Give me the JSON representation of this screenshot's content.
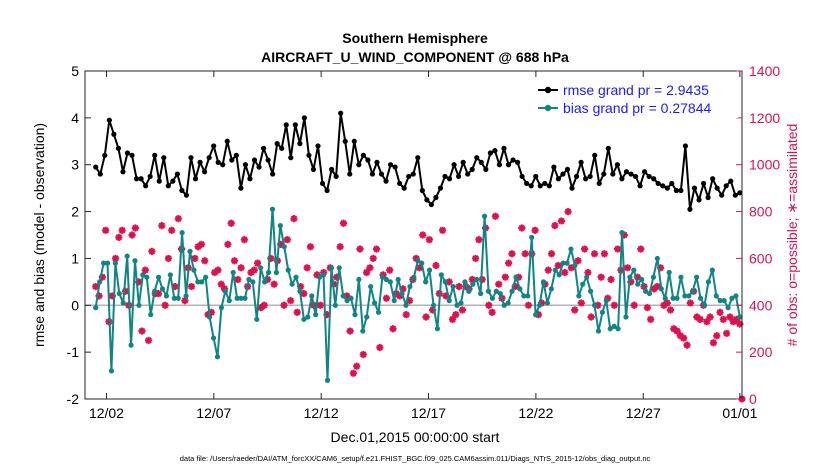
{
  "chart_data": {
    "type": "line",
    "title": "Southern Hemisphere",
    "subtitle": "AIRCRAFT_U_WIND_COMPONENT @ 688 hPa",
    "xlabel": "Dec.01,2015 00:00:00 start",
    "ylabel": "rmse and bias (model - observation)",
    "ylabel_right": "# of obs: o=possible; ∗=assimilated",
    "footnote": "data file: /Users/raeder/DAI/ATM_forcXX/CAM6_setup/f.e21.FHIST_BGC.f09_025.CAM6assim.011/Diags_NTrS_2015-12/obs_diag_output.nc",
    "xlim": [
      0.5,
      31.1
    ],
    "ylim": [
      -2,
      5
    ],
    "ylim_right": [
      0,
      1400
    ],
    "x_ticks": [
      1.5,
      6.5,
      11.5,
      16.5,
      21.5,
      26.5,
      31
    ],
    "x_tick_labels": [
      "12/02",
      "12/07",
      "12/12",
      "12/17",
      "12/22",
      "12/27",
      "01/01"
    ],
    "y_ticks": [
      "-2",
      "-1",
      "0",
      "1",
      "2",
      "3",
      "4",
      "5"
    ],
    "y_ticks_right": [
      "0",
      "200",
      "400",
      "600",
      "800",
      "1000",
      "1200",
      "1400"
    ],
    "legend": {
      "placement": "top-right",
      "rmse_label": "rmse grand pr = 2.9435",
      "bias_label": "bias grand pr = 0.27844"
    },
    "colors": {
      "rmse": "#000000",
      "bias": "#0f8585",
      "obs": "#e0104f",
      "right_axis": "#d6135a",
      "legend_text": "#1a1aff",
      "zero_line": "#b3b3b3"
    },
    "series": [
      {
        "name": "rmse",
        "values": [
          2.95,
          2.8,
          3.2,
          3.95,
          3.65,
          3.35,
          2.85,
          3.25,
          3.2,
          2.7,
          2.7,
          2.55,
          2.75,
          3.2,
          2.65,
          3.15,
          2.55,
          2.65,
          2.8,
          2.45,
          2.35,
          3.15,
          2.7,
          3.05,
          2.85,
          3.15,
          3.4,
          3.05,
          3.0,
          3.5,
          3.1,
          3.2,
          2.5,
          3.0,
          2.7,
          3.1,
          2.95,
          3.35,
          3.1,
          2.8,
          3.45,
          3.35,
          3.85,
          3.15,
          3.85,
          3.45,
          4.0,
          3.2,
          2.9,
          3.4,
          2.6,
          2.45,
          2.9,
          2.75,
          4.1,
          3.5,
          2.8,
          3.5,
          3.0,
          3.2,
          3.1,
          2.8,
          3.05,
          2.8,
          2.65,
          3.0,
          2.95,
          2.6,
          2.5,
          2.75,
          2.8,
          3.15,
          2.45,
          2.25,
          2.15,
          2.3,
          2.5,
          2.75,
          2.7,
          3.0,
          2.75,
          3.05,
          2.8,
          2.9,
          3.15,
          3.05,
          2.9,
          3.25,
          3.3,
          3.0,
          3.35,
          3.0,
          3.1,
          3.05,
          2.75,
          2.6,
          2.55,
          2.75,
          2.55,
          2.6,
          2.55,
          2.95,
          2.7,
          2.8,
          2.9,
          2.5,
          2.75,
          3.05,
          2.7,
          2.75,
          3.2,
          2.6,
          2.8,
          3.35,
          2.8,
          3.0,
          2.7,
          2.85,
          2.8,
          2.75,
          2.55,
          2.85,
          2.75,
          2.7,
          2.6,
          2.55,
          2.5,
          2.6,
          2.45,
          2.45,
          3.4,
          2.05,
          2.5,
          2.25,
          2.6,
          2.3,
          2.7,
          2.5,
          2.35,
          2.55,
          2.65,
          2.35,
          2.4
        ]
      },
      {
        "name": "bias",
        "values": [
          -0.05,
          0.5,
          0.9,
          0.9,
          -1.4,
          0.9,
          0.25,
          0.05,
          1.05,
          -0.85,
          0.95,
          0.0,
          0.65,
          0.6,
          -0.2,
          0.3,
          0.6,
          0.35,
          0.2,
          0.65,
          0.15,
          0.15,
          1.55,
          0.2,
          1.15,
          0.75,
          0.5,
          0.5,
          0.6,
          -0.25,
          -0.7,
          -1.1,
          -0.05,
          0.3,
          0.1,
          0.7,
          0.15,
          0.15,
          0.15,
          0.55,
          0.5,
          -0.3,
          0.8,
          0.5,
          0.7,
          2.05,
          0.7,
          1.7,
          1.25,
          0.75,
          0.45,
          0.6,
          0.3,
          -0.3,
          -0.25,
          0.2,
          -0.2,
          0.6,
          0.65,
          -1.6,
          0.8,
          0.0,
          0.8,
          0.2,
          0.1,
          0.15,
          -0.2,
          0.55,
          -0.55,
          -0.25,
          0.4,
          0.05,
          -0.15,
          0.6,
          0.55,
          0.5,
          0.1,
          0.55,
          0.25,
          0.0,
          0.4,
          0.6,
          0.95,
          0.9,
          0.5,
          0.75,
          0.0,
          -0.5,
          0.65,
          0.5,
          0.1,
          0.4,
          0.0,
          0.05,
          0.5,
          0.3,
          0.45,
          0.55,
          0.25,
          1.9,
          0.3,
          0.15,
          0.3,
          0.25,
          0.0,
          0.05,
          0.3,
          0.6,
          0.35,
          0.2,
          0.2,
          1.45,
          -0.2,
          0.0,
          0.5,
          0.05,
          0.35,
          0.75,
          0.65,
          0.9,
          0.9,
          1.2,
          0.85,
          0.2,
          0.45,
          0.6,
          0.3,
          0.0,
          -0.55,
          -0.15,
          0.1,
          -0.5,
          -0.45,
          -0.5,
          1.55,
          -0.25,
          0.6,
          0.75,
          0.45,
          0.55,
          0.3,
          0.25,
          0.6,
          1.0,
          0.35,
          0.15,
          0.7,
          0.15,
          0.15,
          0.6,
          0.2,
          0.2,
          0.3,
          0.6,
          0.15,
          0.0,
          0.5,
          0.75,
          0.2,
          0.1,
          0.1,
          -0.05,
          0.15,
          0.2,
          -0.25
        ]
      },
      {
        "name": "obs_assimilated",
        "values": [
          480,
          440,
          520,
          720,
          330,
          440,
          600,
          690,
          720,
          460,
          400,
          700,
          730,
          500,
          290,
          550,
          250,
          630,
          450,
          450,
          740,
          400,
          600,
          720,
          480,
          770,
          640,
          420,
          560,
          480,
          600,
          650,
          660,
          590,
          360,
          370,
          540,
          550,
          490,
          470,
          660,
          750,
          590,
          510,
          560,
          680,
          480,
          540,
          550,
          580,
          390,
          400,
          510,
          600,
          490,
          590,
          660,
          400,
          680,
          420,
          770,
          370,
          480,
          450,
          560,
          650,
          400,
          530,
          400,
          540,
          360,
          560,
          490,
          520,
          650,
          750,
          440,
          290,
          110,
          140,
          640,
          190,
          540,
          560,
          600,
          640,
          220,
          530,
          430,
          550,
          300,
          450,
          440,
          470,
          360,
          420,
          510,
          600,
          560,
          700,
          350,
          680,
          380,
          570,
          450,
          720,
          440,
          500,
          340,
          360,
          480,
          380,
          480,
          470,
          510,
          600,
          680,
          510,
          730,
          400,
          370,
          780,
          490,
          430,
          520,
          580,
          620,
          480,
          520,
          730,
          620,
          400,
          620,
          720,
          360,
          410,
          490,
          550,
          620,
          740,
          570,
          760,
          540,
          800,
          560,
          380,
          590,
          410,
          640,
          540,
          350,
          620,
          400,
          520,
          620,
          430,
          510,
          400,
          640,
          550,
          700,
          560,
          500,
          400,
          520,
          640,
          480,
          390,
          340,
          470,
          480,
          560,
          400,
          410,
          380,
          300,
          290,
          270,
          260,
          230,
          410,
          460,
          350,
          340,
          400,
          330,
          350,
          240,
          270,
          370,
          340,
          280,
          350,
          330,
          340,
          320
        ]
      },
      {
        "name": "obs_possible",
        "values": [
          0
        ]
      }
    ]
  }
}
